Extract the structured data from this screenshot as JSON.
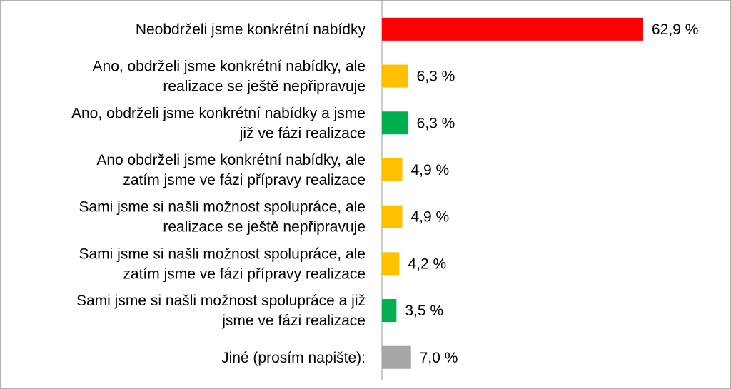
{
  "chart_data": {
    "type": "bar",
    "orientation": "horizontal",
    "title": "",
    "xlabel": "",
    "ylabel": "",
    "grid": false,
    "legend": "none",
    "xlim": [
      0,
      62.9
    ],
    "categories": [
      [
        "Neobdrželi jsme konkrétní nabídky"
      ],
      [
        "Ano, obdrželi jsme konkrétní nabídky, ale",
        "realizace se ještě nepřipravuje"
      ],
      [
        "Ano, obdrželi jsme konkrétní nabídky a jsme",
        "již ve fázi realizace"
      ],
      [
        "Ano obdrželi jsme konkrétní nabídky, ale",
        "zatím jsme ve fázi přípravy realizace"
      ],
      [
        "Sami jsme si našli možnost spolupráce, ale",
        "realizace se ještě nepřipravuje"
      ],
      [
        "Sami jsme si našli možnost spolupráce, ale",
        "zatím jsme ve fázi přípravy realizace"
      ],
      [
        "Sami jsme si našli možnost spolupráce a již",
        "jsme ve fázi realizace"
      ],
      [
        "Jiné (prosím napište):"
      ]
    ],
    "values": [
      62.9,
      6.3,
      6.3,
      4.9,
      4.9,
      4.2,
      3.5,
      7.0
    ],
    "value_labels": [
      "62,9 %",
      "6,3 %",
      "6,3 %",
      "4,9 %",
      "4,9 %",
      "4,2 %",
      "3,5 %",
      "7,0 %"
    ],
    "colors": [
      "#ff0000",
      "#ffc000",
      "#00b050",
      "#ffc000",
      "#ffc000",
      "#ffc000",
      "#00b050",
      "#a6a6a6"
    ]
  }
}
